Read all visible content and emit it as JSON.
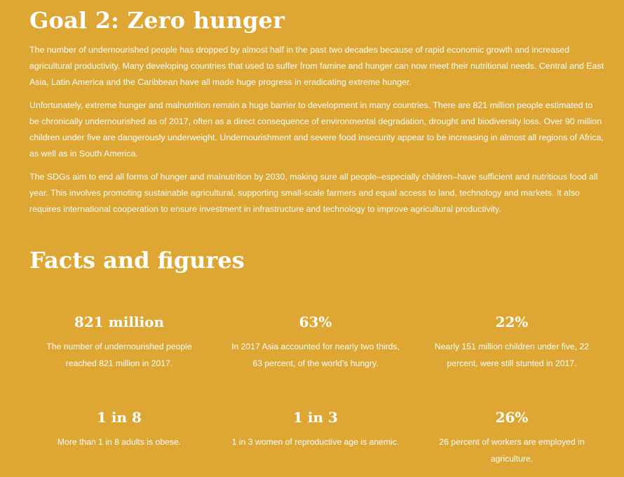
{
  "goal": {
    "title": "Goal 2: Zero hunger",
    "paragraphs": [
      "The number of undernourished people has dropped by almost half in the past two decades because of rapid economic growth and increased agricultural productivity. Many developing countries that used to suffer from famine and hunger can now meet their nutritional needs. Central and East Asia, Latin America and the Caribbean have all made huge progress in eradicating extreme hunger.",
      "Unfortunately, extreme hunger and malnutrition remain a huge barrier to development in many countries. There are 821 million people estimated to be chronically undernourished as of 2017, often as a direct consequence of environmental degradation, drought and biodiversity loss. Over 90 million children under five are dangerously underweight. Undernourishment and severe food insecurity appear to be increasing in almost all regions of Africa, as well as in South America.",
      "The SDGs aim to end all forms of hunger and malnutrition by 2030, making sure all people–especially children–have sufficient and nutritious food all year. This involves promoting sustainable agricultural, supporting small-scale farmers and equal access to land, technology and markets. It also requires international cooperation to ensure investment in infrastructure and technology to improve agricultural productivity."
    ]
  },
  "facts": {
    "title": "Facts and figures",
    "items": [
      {
        "value": "821 million",
        "text": "The number of undernourished people reached 821 million in 2017."
      },
      {
        "value": "63%",
        "text": "In 2017 Asia accounted for nearly two thirds, 63 percent, of the world’s hungry."
      },
      {
        "value": "22%",
        "text": "Nearly 151 million children under five, 22 percent, were still stunted in 2017."
      },
      {
        "value": "1 in 8",
        "text": "More than 1 in 8 adults is obese."
      },
      {
        "value": "1 in 3",
        "text": "1 in 3 women of reproductive age is anemic."
      },
      {
        "value": "26%",
        "text": "26 percent of workers are employed in agriculture."
      }
    ]
  },
  "colors": {
    "background": "#dea734",
    "text": "#ffffff"
  }
}
